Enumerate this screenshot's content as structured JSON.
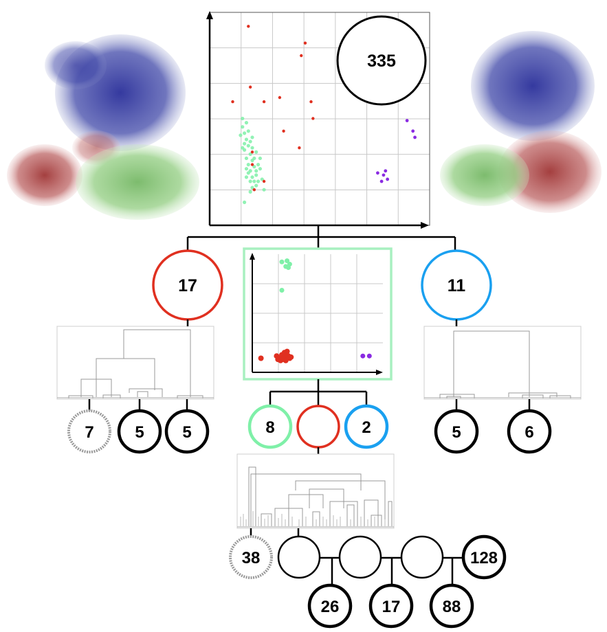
{
  "colors": {
    "red": "#e03020",
    "green": "#7ff0a8",
    "blue": "#1aa0f0",
    "purple": "#8a2be2",
    "black": "#000000",
    "gray": "#999999",
    "grid": "#c8c8c8",
    "frame_green": "#a8f0c0",
    "struct_blue": "#2a2f9a",
    "struct_red": "#a83838",
    "struct_green": "#86c878"
  },
  "root": {
    "label": "335"
  },
  "level1": {
    "red": {
      "label": "17"
    },
    "blue": {
      "label": "11"
    }
  },
  "red_leaves": [
    {
      "label": "7",
      "style": "gray"
    },
    {
      "label": "5",
      "style": "black"
    },
    {
      "label": "5",
      "style": "black"
    }
  ],
  "blue_leaves": [
    {
      "label": "5",
      "style": "black"
    },
    {
      "label": "6",
      "style": "black"
    }
  ],
  "green_children": [
    {
      "label": "8",
      "color": "green"
    },
    {
      "label": "",
      "color": "red"
    },
    {
      "label": "2",
      "color": "blue"
    }
  ],
  "bottom_chain": {
    "first": {
      "label": "38",
      "style": "gray"
    },
    "end": {
      "label": "128"
    },
    "branches": [
      {
        "label": "26"
      },
      {
        "label": "17"
      },
      {
        "label": "88"
      }
    ]
  },
  "scatter_top": {
    "red": [
      [
        1.8,
        9.4
      ],
      [
        1.9,
        6.5
      ],
      [
        1.0,
        5.8
      ],
      [
        2.6,
        5.8
      ],
      [
        3.4,
        6.0
      ],
      [
        4.7,
        8.6
      ],
      [
        4.5,
        8.0
      ],
      [
        5.0,
        5.8
      ],
      [
        5.1,
        5.0
      ],
      [
        3.6,
        4.4
      ],
      [
        4.4,
        3.6
      ],
      [
        2.0,
        3.4
      ],
      [
        2.0,
        2.8
      ],
      [
        2.6,
        2.0
      ],
      [
        2.1,
        1.6
      ]
    ],
    "green": [
      [
        1.5,
        4.6
      ],
      [
        1.6,
        4.3
      ],
      [
        1.7,
        4.0
      ],
      [
        1.8,
        3.7
      ],
      [
        1.6,
        3.5
      ],
      [
        1.9,
        3.3
      ],
      [
        2.0,
        3.0
      ],
      [
        1.7,
        3.1
      ],
      [
        2.1,
        2.7
      ],
      [
        1.8,
        2.8
      ],
      [
        1.9,
        2.5
      ],
      [
        2.2,
        2.3
      ],
      [
        2.0,
        2.2
      ],
      [
        2.3,
        2.0
      ],
      [
        1.7,
        4.8
      ],
      [
        1.5,
        5.0
      ],
      [
        1.6,
        3.8
      ],
      [
        2.0,
        3.6
      ],
      [
        1.8,
        2.4
      ],
      [
        2.2,
        1.8
      ],
      [
        2.4,
        2.6
      ],
      [
        1.9,
        1.5
      ],
      [
        1.6,
        1.0
      ],
      [
        2.4,
        3.1
      ],
      [
        1.4,
        4.2
      ],
      [
        2.1,
        2.0
      ],
      [
        2.5,
        2.1
      ],
      [
        1.7,
        2.6
      ],
      [
        1.9,
        3.9
      ],
      [
        2.2,
        3.4
      ],
      [
        1.8,
        4.4
      ],
      [
        2.3,
        2.8
      ],
      [
        1.5,
        3.6
      ],
      [
        2.0,
        1.7
      ],
      [
        2.6,
        1.6
      ],
      [
        1.7,
        2.2
      ],
      [
        2.1,
        3.1
      ],
      [
        1.9,
        2.0
      ],
      [
        2.0,
        4.1
      ],
      [
        2.2,
        2.5
      ]
    ],
    "purple": [
      [
        9.9,
        4.9
      ],
      [
        10.2,
        4.4
      ],
      [
        10.3,
        4.1
      ],
      [
        8.4,
        2.4
      ],
      [
        8.7,
        2.3
      ],
      [
        8.9,
        2.1
      ],
      [
        8.6,
        2.0
      ],
      [
        8.8,
        2.5
      ]
    ]
  },
  "scatter_mid": {
    "green": [
      [
        2.0,
        9.5
      ],
      [
        2.4,
        9.6
      ],
      [
        2.6,
        9.3
      ],
      [
        2.3,
        9.1
      ],
      [
        2.5,
        9.0
      ],
      [
        2.0,
        7.0
      ]
    ],
    "red": [
      [
        0.4,
        1.0
      ],
      [
        1.6,
        1.2
      ],
      [
        1.8,
        1.0
      ],
      [
        2.0,
        1.3
      ],
      [
        2.2,
        1.1
      ],
      [
        2.4,
        1.2
      ],
      [
        2.6,
        1.0
      ],
      [
        1.9,
        0.8
      ],
      [
        2.1,
        0.9
      ],
      [
        2.3,
        0.8
      ],
      [
        2.5,
        1.2
      ],
      [
        2.7,
        1.1
      ],
      [
        2.2,
        1.5
      ],
      [
        2.4,
        1.6
      ],
      [
        2.0,
        1.1
      ],
      [
        1.7,
        0.9
      ]
    ],
    "purple": [
      [
        8.2,
        1.2
      ],
      [
        8.7,
        1.2
      ]
    ]
  }
}
